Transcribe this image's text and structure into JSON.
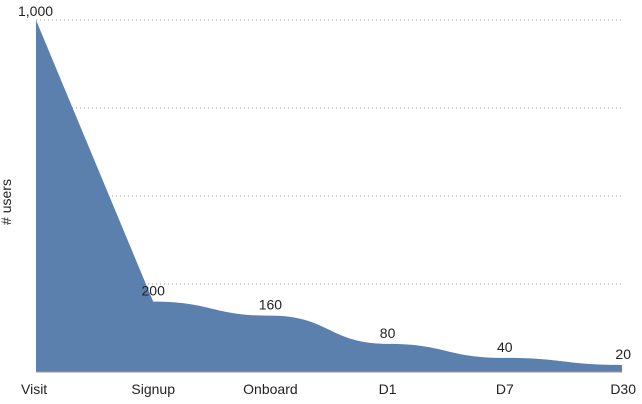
{
  "chart_data": {
    "type": "area",
    "title": "",
    "xlabel": "",
    "ylabel": "# users",
    "categories": [
      "Visit",
      "Signup",
      "Onboard",
      "D1",
      "D7",
      "D30"
    ],
    "series": [
      {
        "values": [
          1000,
          200,
          160,
          80,
          40,
          20
        ],
        "color": "#5b80ad"
      }
    ],
    "data_labels": [
      "1,000",
      "200",
      "160",
      "80",
      "40",
      "20"
    ],
    "ylim": [
      0,
      1000
    ],
    "gridlines": [
      250,
      500,
      750,
      1000
    ],
    "grid": true,
    "legend": "none"
  }
}
